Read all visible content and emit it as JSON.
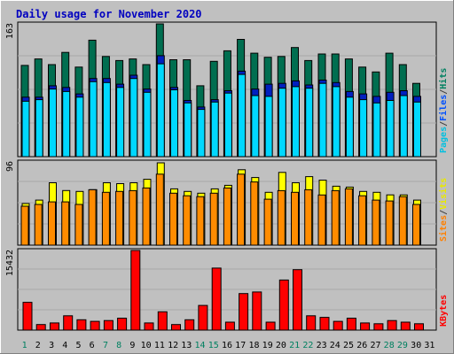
{
  "chart_data": {
    "type": "bar",
    "title": "Daily usage for November 2020",
    "categories": [
      "1",
      "2",
      "3",
      "4",
      "5",
      "6",
      "7",
      "8",
      "9",
      "10",
      "11",
      "12",
      "13",
      "14",
      "15",
      "16",
      "17",
      "18",
      "19",
      "20",
      "21",
      "22",
      "23",
      "24",
      "25",
      "26",
      "27",
      "28",
      "29",
      "30",
      "31"
    ],
    "weekend_days": [
      "1",
      "7",
      "8",
      "14",
      "15",
      "21",
      "22",
      "28",
      "29"
    ],
    "panels": [
      {
        "name": "hits-files-pages",
        "ymax_label": "163",
        "ymax": 163,
        "legend": [
          "Pages",
          "/",
          "Files",
          "/",
          "Hits"
        ],
        "legend_colors": [
          "#00c0e0",
          "#404040",
          "#0050ff",
          "#404040",
          "#008060"
        ],
        "series": [
          {
            "name": "Hits",
            "color": "#006e50",
            "values": [
              112,
              120,
              113,
              128,
              110,
              143,
              123,
              118,
              120,
              113,
              163,
              119,
              119,
              87,
              117,
              130,
              144,
              127,
              122,
              123,
              134,
              118,
              126,
              126,
              120,
              110,
              104,
              127,
              113,
              90,
              null
            ]
          },
          {
            "name": "Files",
            "color": "#0020c0",
            "values": [
              73,
              73,
              87,
              85,
              77,
              96,
              96,
              89,
              100,
              83,
              124,
              85,
              69,
              61,
              70,
              81,
              105,
              83,
              89,
              90,
              93,
              88,
              94,
              91,
              80,
              77,
              74,
              79,
              81,
              74,
              null
            ]
          },
          {
            "name": "Pages",
            "color": "#00d8ff",
            "values": [
              68,
              70,
              83,
              80,
              73,
              92,
              91,
              85,
              96,
              79,
              114,
              82,
              66,
              58,
              67,
              78,
              101,
              75,
              74,
              84,
              86,
              84,
              90,
              86,
              73,
              70,
              66,
              69,
              75,
              67,
              null
            ]
          }
        ]
      },
      {
        "name": "visits-sites",
        "ymax_label": "96",
        "ymax": 96,
        "legend": [
          "Sites",
          "/",
          "Visits"
        ],
        "legend_colors": [
          "#ff8000",
          "#404040",
          "#e8e800"
        ],
        "series": [
          {
            "name": "Visits",
            "color": "#ffff00",
            "values": [
              48,
              52,
              72,
              63,
              62,
              64,
              72,
              71,
              72,
              76,
              95,
              65,
              62,
              60,
              65,
              69,
              87,
              78,
              61,
              84,
              72,
              79,
              75,
              68,
              67,
              62,
              61,
              58,
              58,
              52,
              null
            ]
          },
          {
            "name": "Sites",
            "color": "#ff8c00",
            "values": [
              47,
              49,
              52,
              52,
              49,
              66,
              63,
              64,
              65,
              68,
              84,
              62,
              59,
              58,
              62,
              68,
              84,
              75,
              55,
              65,
              63,
              66,
              60,
              65,
              67,
              59,
              54,
              53,
              58,
              49,
              null
            ]
          }
        ]
      },
      {
        "name": "kbytes",
        "ymax_label": "15432",
        "ymax": 15432,
        "legend": [
          "KBytes"
        ],
        "legend_colors": [
          "#ff0000"
        ],
        "series": [
          {
            "name": "KBytes",
            "color": "#ff0000",
            "values": [
              5392,
              1078,
              1387,
              2773,
              2002,
              1695,
              1849,
              2310,
              15432,
              1387,
              3544,
              1078,
              2002,
              4776,
              12014,
              1540,
              7087,
              7395,
              1540,
              9707,
              11705,
              2773,
              2464,
              1695,
              2310,
              1387,
              1233,
              1849,
              1540,
              1233,
              null
            ]
          }
        ]
      }
    ]
  }
}
